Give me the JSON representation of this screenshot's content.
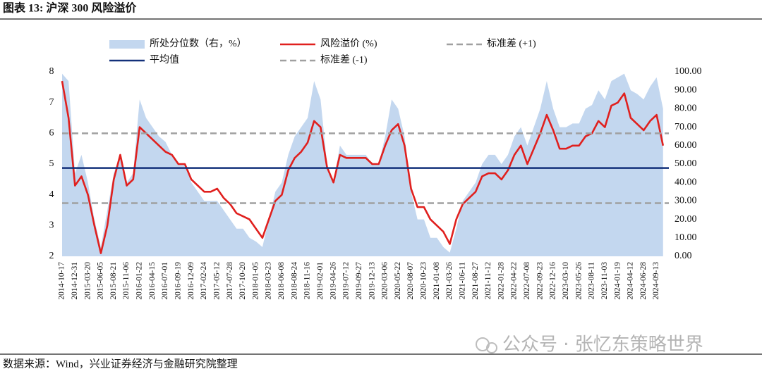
{
  "header": {
    "title": "图表 13:  沪深 300 风险溢价"
  },
  "chart_data": {
    "type": "line",
    "categories": [
      "2014-10-17",
      null,
      "2014-12-31",
      null,
      "2015-03-20",
      null,
      "2015-06-05",
      null,
      "2015-08-21",
      null,
      "2015-11-06",
      null,
      "2016-01-22",
      null,
      "2016-04-15",
      null,
      "2016-07-01",
      null,
      "2016-09-19",
      null,
      "2016-12-09",
      null,
      "2017-02-24",
      null,
      "2017-05-12",
      null,
      "2017-07-28",
      null,
      "2017-10-20",
      null,
      "2018-01-05",
      null,
      "2018-03-23",
      null,
      "2018-06-08",
      null,
      "2018-08-24",
      null,
      "2018-11-16",
      null,
      "2019-02-01",
      null,
      "2019-04-26",
      null,
      "2019-07-12",
      null,
      "2019-09-27",
      null,
      "2019-12-13",
      null,
      "2020-03-06",
      null,
      "2020-05-22",
      null,
      "2020-08-07",
      null,
      "2020-10-23",
      null,
      "2021-01-08",
      null,
      "2021-03-26",
      null,
      "2021-06-11",
      null,
      "2021-08-27",
      null,
      "2021-11-12",
      null,
      "2022-01-28",
      null,
      "2022-04-22",
      null,
      "2022-07-08",
      null,
      "2022-09-23",
      null,
      "2022-12-16",
      null,
      "2023-03-10",
      null,
      "2023-05-26",
      null,
      "2023-08-11",
      null,
      "2023-11-03",
      null,
      "2024-01-19",
      null,
      "2024-04-12",
      null,
      "2024-06-28",
      null,
      "2024-09-13",
      null
    ],
    "series": [
      {
        "name": "所处分位数（右，%）",
        "kind": "area",
        "axis": "y2",
        "color": "#c3d7ef",
        "values": [
          99,
          95,
          45,
          55,
          40,
          20,
          5,
          25,
          45,
          55,
          40,
          45,
          85,
          75,
          70,
          65,
          62,
          55,
          50,
          50,
          40,
          35,
          30,
          30,
          30,
          25,
          20,
          15,
          15,
          10,
          8,
          5,
          20,
          35,
          40,
          55,
          65,
          70,
          75,
          95,
          85,
          50,
          40,
          60,
          55,
          55,
          55,
          55,
          50,
          50,
          65,
          85,
          80,
          65,
          35,
          20,
          20,
          10,
          10,
          5,
          2,
          15,
          30,
          35,
          40,
          50,
          55,
          55,
          50,
          55,
          65,
          70,
          60,
          70,
          80,
          95,
          80,
          70,
          70,
          72,
          72,
          80,
          82,
          90,
          85,
          95,
          97,
          99,
          90,
          88,
          85,
          92,
          97,
          80
        ]
      },
      {
        "name": "风险溢价 (%)",
        "kind": "line",
        "color": "#e0201e",
        "values": [
          7.7,
          6.5,
          4.3,
          4.6,
          4.0,
          3.0,
          2.1,
          3.0,
          4.5,
          5.3,
          4.3,
          4.5,
          6.2,
          6.0,
          5.8,
          5.6,
          5.4,
          5.3,
          5.0,
          5.0,
          4.5,
          4.3,
          4.1,
          4.1,
          4.2,
          3.9,
          3.7,
          3.4,
          3.3,
          3.2,
          2.9,
          2.6,
          3.2,
          3.8,
          4.0,
          4.8,
          5.2,
          5.4,
          5.7,
          6.4,
          6.2,
          4.9,
          4.4,
          5.3,
          5.2,
          5.2,
          5.2,
          5.2,
          5.0,
          5.0,
          5.6,
          6.1,
          6.3,
          5.6,
          4.2,
          3.6,
          3.6,
          3.2,
          3.0,
          2.8,
          2.4,
          3.2,
          3.7,
          3.9,
          4.1,
          4.6,
          4.7,
          4.7,
          4.5,
          4.8,
          5.3,
          5.6,
          5.0,
          5.5,
          6.0,
          6.6,
          6.1,
          5.5,
          5.5,
          5.6,
          5.6,
          5.9,
          6.0,
          6.4,
          6.2,
          6.9,
          7.0,
          7.3,
          6.5,
          6.3,
          6.1,
          6.4,
          6.6,
          5.6
        ]
      }
    ],
    "hlines": [
      {
        "name": "标准差 (+1)",
        "value": 6.0,
        "color": "#a0a0a0",
        "dashed": true
      },
      {
        "name": "平均值",
        "value": 4.87,
        "color": "#13307a",
        "dashed": false
      },
      {
        "name": "标准差 (-1)",
        "value": 3.73,
        "color": "#a0a0a0",
        "dashed": true
      }
    ],
    "ylim": [
      2,
      8
    ],
    "yticks": [
      2,
      3,
      4,
      5,
      6,
      7,
      8
    ],
    "y2lim": [
      0,
      100
    ],
    "y2ticks": [
      {
        "value": 0,
        "label": "0.00"
      },
      {
        "value": 10,
        "label": "10.00"
      },
      {
        "value": 20,
        "label": "20.00"
      },
      {
        "value": 30,
        "label": "30.00"
      },
      {
        "value": 40,
        "label": "40.00"
      },
      {
        "value": 50,
        "label": "50.00"
      },
      {
        "value": 60,
        "label": "60.00"
      },
      {
        "value": 70,
        "label": "70.00"
      },
      {
        "value": 80,
        "label": "80.00"
      },
      {
        "value": 90,
        "label": "90.00"
      },
      {
        "value": 100,
        "label": "100.00"
      }
    ]
  },
  "footer": {
    "source": "数据来源：Wind，兴业证券经济与金融研究院整理"
  },
  "watermark": "公众号 · 张忆东策略世界"
}
